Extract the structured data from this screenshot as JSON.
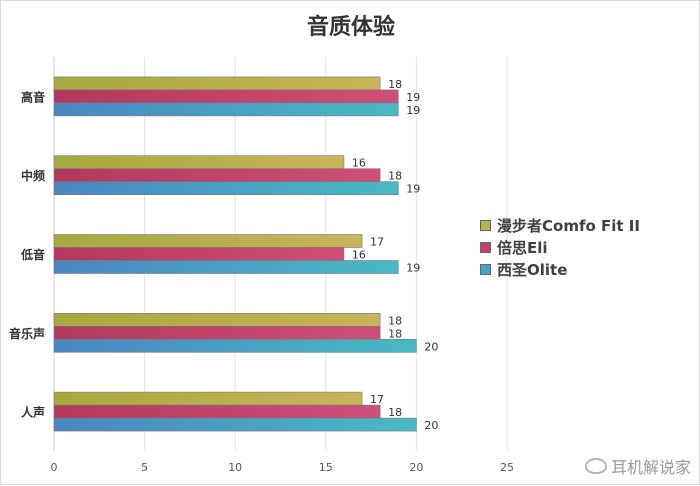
{
  "chart_data": {
    "type": "bar",
    "orientation": "horizontal",
    "title": "音质体验",
    "categories": [
      "高音",
      "中频",
      "低音",
      "音乐声",
      "人声"
    ],
    "series": [
      {
        "name": "漫步者Comfo Fit II",
        "color": "#b5b44d",
        "values": [
          18,
          16,
          17,
          18,
          17
        ]
      },
      {
        "name": "倍思Eli",
        "color": "#c3406a",
        "values": [
          19,
          18,
          16,
          18,
          18
        ]
      },
      {
        "name": "西圣Olite",
        "color": "#43a3c2",
        "values": [
          19,
          19,
          19,
          20,
          20
        ]
      }
    ],
    "xticks": [
      0,
      5,
      10,
      15,
      20,
      25
    ],
    "xlim": [
      0,
      25
    ],
    "grid": true,
    "legend": "right"
  },
  "watermark": {
    "text": "耳机解说家",
    "icon": "weibo-icon"
  }
}
